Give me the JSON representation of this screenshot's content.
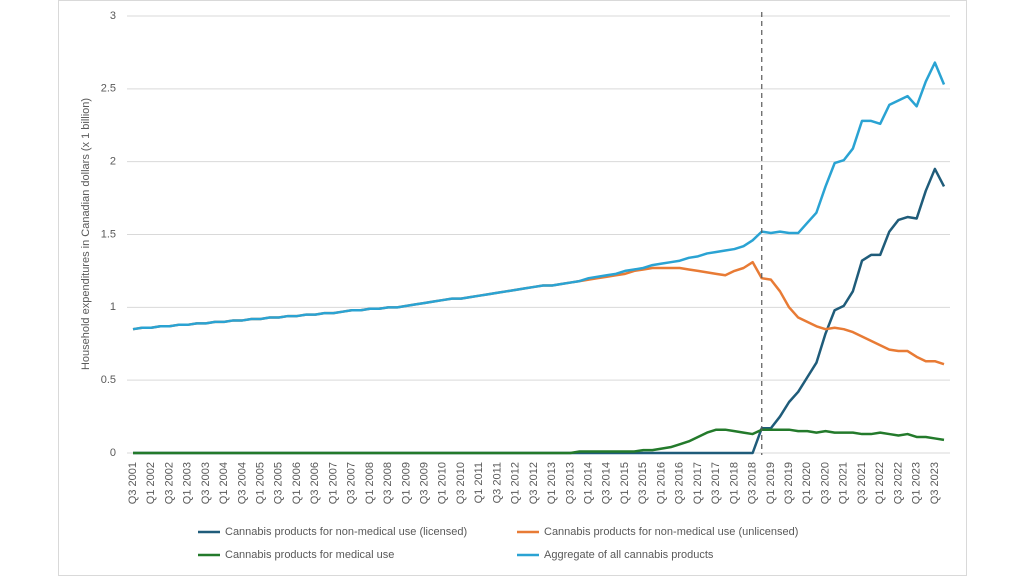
{
  "chart_data": {
    "type": "line",
    "y_label": "Household expenditures in Canadian dollars (x 1 billion)",
    "categories": [
      "Q3 2001",
      null,
      "Q1 2002",
      null,
      "Q3 2002",
      null,
      "Q1 2003",
      null,
      "Q3 2003",
      null,
      "Q1 2004",
      null,
      "Q3 2004",
      null,
      "Q1 2005",
      null,
      "Q3 2005",
      null,
      "Q1 2006",
      null,
      "Q3 2006",
      null,
      "Q1 2007",
      null,
      "Q3 2007",
      null,
      "Q1 2008",
      null,
      "Q3 2008",
      null,
      "Q1 2009",
      null,
      "Q3 2009",
      null,
      "Q1 2010",
      null,
      "Q3 2010",
      null,
      "Q1 2011",
      null,
      "Q3 2011",
      null,
      "Q1 2012",
      null,
      "Q3 2012",
      null,
      "Q1 2013",
      null,
      "Q3 2013",
      null,
      "Q1 2014",
      null,
      "Q3 2014",
      null,
      "Q1 2015",
      null,
      "Q3 2015",
      null,
      "Q1 2016",
      null,
      "Q3 2016",
      null,
      "Q1 2017",
      null,
      "Q3 2017",
      null,
      "Q1 2018",
      null,
      "Q3 2018",
      null,
      "Q1 2019",
      null,
      "Q3 2019",
      null,
      "Q1 2020",
      null,
      "Q3 2020",
      null,
      "Q1 2021",
      null,
      "Q3 2021",
      null,
      "Q1 2022",
      null,
      "Q3 2022",
      null,
      "Q1 2023",
      null,
      "Q3 2023",
      null
    ],
    "series": [
      {
        "name": "Cannabis products for non-medical use (licensed)",
        "color": "#1f5c7a",
        "values": [
          0,
          0,
          0,
          0,
          0,
          0,
          0,
          0,
          0,
          0,
          0,
          0,
          0,
          0,
          0,
          0,
          0,
          0,
          0,
          0,
          0,
          0,
          0,
          0,
          0,
          0,
          0,
          0,
          0,
          0,
          0,
          0,
          0,
          0,
          0,
          0,
          0,
          0,
          0,
          0,
          0,
          0,
          0,
          0,
          0,
          0,
          0,
          0,
          0,
          0,
          0,
          0,
          0,
          0,
          0,
          0,
          0,
          0,
          0,
          0,
          0,
          0,
          0,
          0,
          0,
          0,
          0,
          0,
          0,
          0.17,
          0.17,
          0.25,
          0.35,
          0.42,
          0.52,
          0.62,
          0.82,
          0.98,
          1.01,
          1.11,
          1.32,
          1.36,
          1.36,
          1.52,
          1.6,
          1.62,
          1.61,
          1.8,
          1.95,
          1.83
        ]
      },
      {
        "name": "Cannabis products for non-medical use (unlicensed)",
        "color": "#e87b35",
        "values": [
          0.85,
          0.86,
          0.86,
          0.87,
          0.87,
          0.88,
          0.88,
          0.89,
          0.89,
          0.9,
          0.9,
          0.91,
          0.91,
          0.92,
          0.92,
          0.93,
          0.93,
          0.94,
          0.94,
          0.95,
          0.95,
          0.96,
          0.96,
          0.97,
          0.98,
          0.98,
          0.99,
          0.99,
          1.0,
          1.0,
          1.01,
          1.02,
          1.03,
          1.04,
          1.05,
          1.06,
          1.06,
          1.07,
          1.08,
          1.09,
          1.1,
          1.11,
          1.12,
          1.13,
          1.14,
          1.15,
          1.15,
          1.16,
          1.17,
          1.18,
          1.19,
          1.2,
          1.21,
          1.22,
          1.23,
          1.25,
          1.26,
          1.27,
          1.27,
          1.27,
          1.27,
          1.26,
          1.25,
          1.24,
          1.23,
          1.22,
          1.25,
          1.27,
          1.31,
          1.2,
          1.19,
          1.11,
          1.0,
          0.93,
          0.9,
          0.87,
          0.85,
          0.86,
          0.85,
          0.83,
          0.8,
          0.77,
          0.74,
          0.71,
          0.7,
          0.7,
          0.66,
          0.63,
          0.63,
          0.61
        ]
      },
      {
        "name": "Cannabis products for medical use",
        "color": "#237a2b",
        "values": [
          0,
          0,
          0,
          0,
          0,
          0,
          0,
          0,
          0,
          0,
          0,
          0,
          0,
          0,
          0,
          0,
          0,
          0,
          0,
          0,
          0,
          0,
          0,
          0,
          0,
          0,
          0,
          0,
          0,
          0,
          0,
          0,
          0,
          0,
          0,
          0,
          0,
          0,
          0,
          0,
          0,
          0,
          0,
          0,
          0,
          0,
          0,
          0,
          0,
          0.01,
          0.01,
          0.01,
          0.01,
          0.01,
          0.01,
          0.01,
          0.02,
          0.02,
          0.03,
          0.04,
          0.06,
          0.08,
          0.11,
          0.14,
          0.16,
          0.16,
          0.15,
          0.14,
          0.13,
          0.16,
          0.16,
          0.16,
          0.16,
          0.15,
          0.15,
          0.14,
          0.15,
          0.14,
          0.14,
          0.14,
          0.13,
          0.13,
          0.14,
          0.13,
          0.12,
          0.13,
          0.11,
          0.11,
          0.1,
          0.09
        ]
      },
      {
        "name": "Aggregate of all cannabis products",
        "color": "#2aa3d3",
        "values": [
          0.85,
          0.86,
          0.86,
          0.87,
          0.87,
          0.88,
          0.88,
          0.89,
          0.89,
          0.9,
          0.9,
          0.91,
          0.91,
          0.92,
          0.92,
          0.93,
          0.93,
          0.94,
          0.94,
          0.95,
          0.95,
          0.96,
          0.96,
          0.97,
          0.98,
          0.98,
          0.99,
          0.99,
          1.0,
          1.0,
          1.01,
          1.02,
          1.03,
          1.04,
          1.05,
          1.06,
          1.06,
          1.07,
          1.08,
          1.09,
          1.1,
          1.11,
          1.12,
          1.13,
          1.14,
          1.15,
          1.15,
          1.16,
          1.17,
          1.18,
          1.2,
          1.21,
          1.22,
          1.23,
          1.25,
          1.26,
          1.27,
          1.29,
          1.3,
          1.31,
          1.32,
          1.34,
          1.35,
          1.37,
          1.38,
          1.39,
          1.4,
          1.42,
          1.46,
          1.52,
          1.51,
          1.52,
          1.51,
          1.51,
          1.58,
          1.65,
          1.83,
          1.99,
          2.01,
          2.09,
          2.28,
          2.28,
          2.26,
          2.39,
          2.42,
          2.45,
          2.38,
          2.55,
          2.68,
          2.53
        ]
      }
    ],
    "ylim": [
      0,
      3
    ],
    "yticks": [
      0,
      0.5,
      1,
      1.5,
      2,
      2.5,
      3
    ],
    "grid": true,
    "vline": {
      "at": 69,
      "dashed": true
    }
  }
}
